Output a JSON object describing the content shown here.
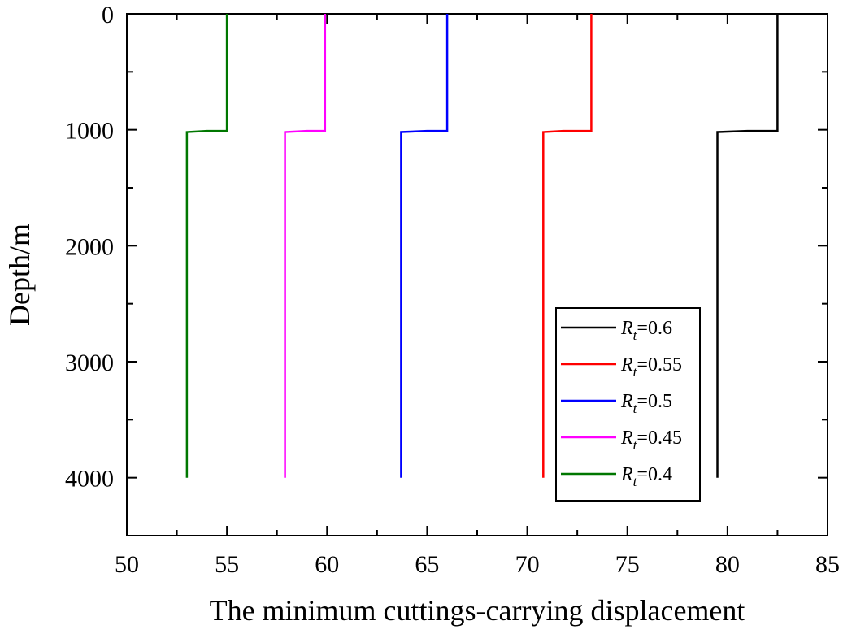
{
  "chart_data": {
    "type": "line",
    "title": "",
    "xlabel": "The minimum cuttings-carrying displacement",
    "ylabel": "Depth/m",
    "xlim": [
      50,
      85
    ],
    "ylim": [
      4500,
      0
    ],
    "y_inverted": true,
    "xticks": [
      50,
      55,
      60,
      65,
      70,
      75,
      80,
      85
    ],
    "xtick_labels": [
      "50",
      "55",
      "60",
      "65",
      "70",
      "75",
      "80",
      "85"
    ],
    "yticks": [
      0,
      1000,
      2000,
      3000,
      4000
    ],
    "ytick_labels": [
      "0",
      "1000",
      "2000",
      "3000",
      "4000"
    ],
    "grid": false,
    "legend_position": "bottom-right",
    "series": [
      {
        "name": "Rt=0.6",
        "symbol": "R",
        "subscript": "t",
        "value_text": "=0.6",
        "color": "#000000",
        "x": [
          82.5,
          82.5,
          81.0,
          79.5,
          79.5
        ],
        "y": [
          0,
          1010,
          1010,
          1020,
          4000
        ]
      },
      {
        "name": "Rt=0.55",
        "symbol": "R",
        "subscript": "t",
        "value_text": "=0.55",
        "color": "#ff0000",
        "x": [
          73.2,
          73.2,
          71.8,
          70.8,
          70.8
        ],
        "y": [
          0,
          1010,
          1010,
          1020,
          4000
        ]
      },
      {
        "name": "Rt=0.5",
        "symbol": "R",
        "subscript": "t",
        "value_text": "=0.5",
        "color": "#0000ff",
        "x": [
          66.0,
          66.0,
          65.0,
          63.7,
          63.7
        ],
        "y": [
          0,
          1010,
          1010,
          1020,
          4000
        ]
      },
      {
        "name": "Rt=0.45",
        "symbol": "R",
        "subscript": "t",
        "value_text": "=0.45",
        "color": "#ff00ff",
        "x": [
          59.9,
          59.9,
          59.0,
          57.9,
          57.9
        ],
        "y": [
          0,
          1010,
          1010,
          1020,
          4000
        ]
      },
      {
        "name": "Rt=0.4",
        "symbol": "R",
        "subscript": "t",
        "value_text": "=0.4",
        "color": "#007700",
        "x": [
          55.0,
          55.0,
          54.0,
          53.0,
          53.0
        ],
        "y": [
          0,
          1010,
          1010,
          1020,
          4000
        ]
      }
    ]
  }
}
